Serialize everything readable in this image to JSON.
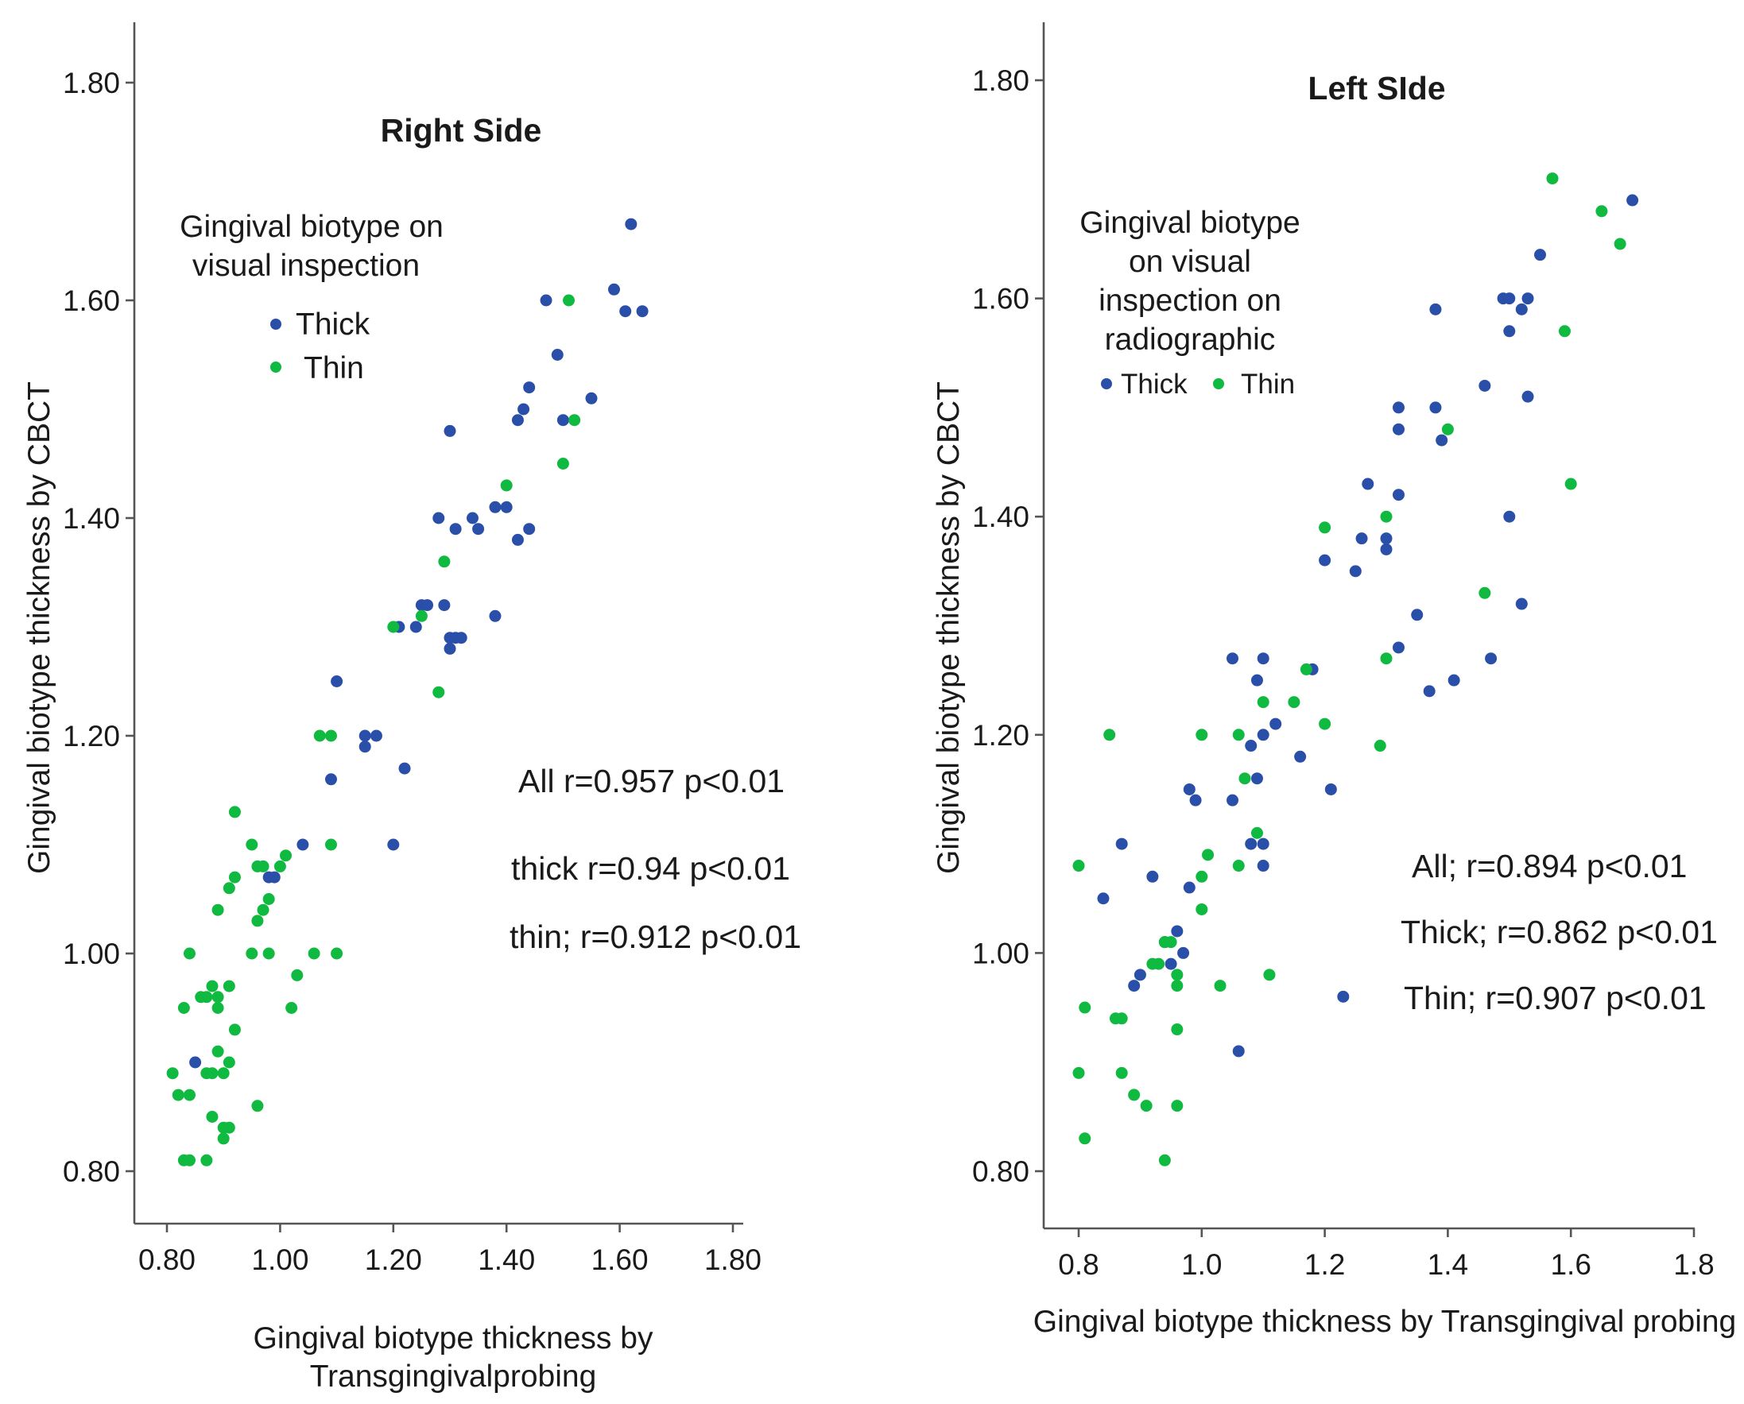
{
  "chart_data": [
    {
      "type": "scatter",
      "title": "Right Side",
      "xlabel": [
        "Gingival biotype thickness by",
        "Transgingivalprobing"
      ],
      "ylabel": "Gingival biotype thickness by CBCT",
      "xlim": [
        0.78,
        1.8
      ],
      "ylim": [
        0.77,
        1.85
      ],
      "x_ticks": [
        "0.80",
        "1.00",
        "1.20",
        "1.40",
        "1.60",
        "1.80"
      ],
      "y_ticks": [
        "0.80",
        "1.00",
        "1.20",
        "1.40",
        "1.60",
        "1.80"
      ],
      "grid": false,
      "legend": {
        "title": [
          "Gingival biotype on",
          "visual inspection"
        ],
        "placement": "top-left",
        "layout": "vertical",
        "entries": [
          "Thick",
          "Thin"
        ]
      },
      "annotations": [
        "All r=0.957 p<0.01",
        "thick r=0.94 p<0.01",
        "thin; r=0.912 p<0.01"
      ],
      "series": [
        {
          "name": "Thick",
          "color": "#2a4fa8",
          "points": [
            [
              0.85,
              0.9
            ],
            [
              0.98,
              1.07
            ],
            [
              0.99,
              1.07
            ],
            [
              1.04,
              1.1
            ],
            [
              1.09,
              1.16
            ],
            [
              1.1,
              1.25
            ],
            [
              1.15,
              1.19
            ],
            [
              1.15,
              1.2
            ],
            [
              1.17,
              1.2
            ],
            [
              1.2,
              1.1
            ],
            [
              1.21,
              1.3
            ],
            [
              1.22,
              1.17
            ],
            [
              1.24,
              1.3
            ],
            [
              1.25,
              1.32
            ],
            [
              1.26,
              1.32
            ],
            [
              1.28,
              1.4
            ],
            [
              1.29,
              1.32
            ],
            [
              1.3,
              1.28
            ],
            [
              1.3,
              1.29
            ],
            [
              1.3,
              1.48
            ],
            [
              1.31,
              1.39
            ],
            [
              1.31,
              1.29
            ],
            [
              1.32,
              1.29
            ],
            [
              1.34,
              1.4
            ],
            [
              1.35,
              1.39
            ],
            [
              1.38,
              1.31
            ],
            [
              1.38,
              1.41
            ],
            [
              1.4,
              1.41
            ],
            [
              1.42,
              1.38
            ],
            [
              1.42,
              1.49
            ],
            [
              1.43,
              1.5
            ],
            [
              1.44,
              1.39
            ],
            [
              1.44,
              1.52
            ],
            [
              1.47,
              1.6
            ],
            [
              1.49,
              1.55
            ],
            [
              1.5,
              1.49
            ],
            [
              1.55,
              1.51
            ],
            [
              1.59,
              1.61
            ],
            [
              1.61,
              1.59
            ],
            [
              1.62,
              1.67
            ],
            [
              1.64,
              1.59
            ]
          ]
        },
        {
          "name": "Thin",
          "color": "#10b940",
          "points": [
            [
              0.81,
              0.89
            ],
            [
              0.82,
              0.87
            ],
            [
              0.83,
              0.95
            ],
            [
              0.83,
              0.81
            ],
            [
              0.84,
              0.81
            ],
            [
              0.84,
              0.87
            ],
            [
              0.84,
              1.0
            ],
            [
              0.86,
              0.96
            ],
            [
              0.87,
              0.96
            ],
            [
              0.87,
              0.89
            ],
            [
              0.87,
              0.81
            ],
            [
              0.88,
              0.85
            ],
            [
              0.88,
              0.89
            ],
            [
              0.88,
              0.97
            ],
            [
              0.89,
              0.95
            ],
            [
              0.89,
              0.96
            ],
            [
              0.89,
              0.91
            ],
            [
              0.89,
              1.04
            ],
            [
              0.9,
              0.84
            ],
            [
              0.9,
              0.89
            ],
            [
              0.9,
              0.83
            ],
            [
              0.91,
              0.84
            ],
            [
              0.91,
              0.9
            ],
            [
              0.91,
              0.97
            ],
            [
              0.91,
              1.06
            ],
            [
              0.92,
              0.93
            ],
            [
              0.92,
              1.07
            ],
            [
              0.92,
              1.13
            ],
            [
              0.95,
              1.0
            ],
            [
              0.95,
              1.1
            ],
            [
              0.96,
              0.86
            ],
            [
              0.96,
              1.03
            ],
            [
              0.96,
              1.08
            ],
            [
              0.97,
              1.08
            ],
            [
              0.97,
              1.04
            ],
            [
              0.98,
              1.0
            ],
            [
              0.98,
              1.05
            ],
            [
              1.0,
              1.08
            ],
            [
              1.01,
              1.09
            ],
            [
              1.02,
              0.95
            ],
            [
              1.03,
              0.98
            ],
            [
              1.06,
              1.0
            ],
            [
              1.07,
              1.2
            ],
            [
              1.09,
              1.2
            ],
            [
              1.09,
              1.1
            ],
            [
              1.1,
              1.0
            ],
            [
              1.2,
              1.3
            ],
            [
              1.25,
              1.31
            ],
            [
              1.28,
              1.24
            ],
            [
              1.29,
              1.36
            ],
            [
              1.4,
              1.43
            ],
            [
              1.5,
              1.45
            ],
            [
              1.51,
              1.6
            ],
            [
              1.52,
              1.49
            ]
          ]
        }
      ]
    },
    {
      "type": "scatter",
      "title": "Left SIde",
      "xlabel": [
        "Gingival biotype thickness by Transgingival probing"
      ],
      "ylabel": "Gingival biotype thickness by CBCT",
      "xlim": [
        0.77,
        1.82
      ],
      "ylim": [
        0.75,
        1.85
      ],
      "x_ticks": [
        "0.8",
        "1.0",
        "1.2",
        "1.4",
        "1.6",
        "1.8"
      ],
      "y_ticks": [
        "0.80",
        "1.00",
        "1.20",
        "1.40",
        "1.60",
        "1.80"
      ],
      "grid": false,
      "legend": {
        "title": [
          "Gingival biotype",
          "on visual",
          "inspection on",
          "radiographic"
        ],
        "placement": "top-left",
        "layout": "horizontal",
        "entries": [
          "Thick",
          "Thin"
        ]
      },
      "annotations": [
        "All; r=0.894 p<0.01",
        "Thick; r=0.862 p<0.01",
        "Thin; r=0.907 p<0.01"
      ],
      "series": [
        {
          "name": "Thick",
          "color": "#2a4fa8",
          "points": [
            [
              0.84,
              1.05
            ],
            [
              0.87,
              1.1
            ],
            [
              0.89,
              0.97
            ],
            [
              0.9,
              0.98
            ],
            [
              0.92,
              1.07
            ],
            [
              0.94,
              1.01
            ],
            [
              0.95,
              0.99
            ],
            [
              0.96,
              1.02
            ],
            [
              0.97,
              1.0
            ],
            [
              0.98,
              1.06
            ],
            [
              0.98,
              1.15
            ],
            [
              0.99,
              1.14
            ],
            [
              1.05,
              1.14
            ],
            [
              1.05,
              1.27
            ],
            [
              1.06,
              0.91
            ],
            [
              1.08,
              1.19
            ],
            [
              1.08,
              1.1
            ],
            [
              1.09,
              1.16
            ],
            [
              1.09,
              1.25
            ],
            [
              1.1,
              1.08
            ],
            [
              1.1,
              1.1
            ],
            [
              1.1,
              1.2
            ],
            [
              1.1,
              1.27
            ],
            [
              1.12,
              1.21
            ],
            [
              1.16,
              1.18
            ],
            [
              1.18,
              1.26
            ],
            [
              1.2,
              1.36
            ],
            [
              1.21,
              1.15
            ],
            [
              1.23,
              0.96
            ],
            [
              1.25,
              1.35
            ],
            [
              1.26,
              1.38
            ],
            [
              1.27,
              1.43
            ],
            [
              1.3,
              1.37
            ],
            [
              1.3,
              1.38
            ],
            [
              1.32,
              1.28
            ],
            [
              1.32,
              1.42
            ],
            [
              1.32,
              1.48
            ],
            [
              1.32,
              1.5
            ],
            [
              1.35,
              1.31
            ],
            [
              1.37,
              1.24
            ],
            [
              1.38,
              1.5
            ],
            [
              1.38,
              1.59
            ],
            [
              1.39,
              1.47
            ],
            [
              1.41,
              1.25
            ],
            [
              1.46,
              1.52
            ],
            [
              1.47,
              1.27
            ],
            [
              1.49,
              1.6
            ],
            [
              1.5,
              1.4
            ],
            [
              1.5,
              1.57
            ],
            [
              1.5,
              1.6
            ],
            [
              1.52,
              1.32
            ],
            [
              1.52,
              1.59
            ],
            [
              1.53,
              1.51
            ],
            [
              1.53,
              1.6
            ],
            [
              1.55,
              1.64
            ],
            [
              1.7,
              1.69
            ]
          ]
        },
        {
          "name": "Thin",
          "color": "#10b940",
          "points": [
            [
              0.8,
              1.08
            ],
            [
              0.8,
              0.89
            ],
            [
              0.81,
              0.95
            ],
            [
              0.81,
              0.83
            ],
            [
              0.85,
              1.2
            ],
            [
              0.86,
              0.94
            ],
            [
              0.87,
              0.94
            ],
            [
              0.87,
              0.89
            ],
            [
              0.89,
              0.87
            ],
            [
              0.91,
              0.86
            ],
            [
              0.92,
              0.99
            ],
            [
              0.93,
              0.99
            ],
            [
              0.94,
              1.01
            ],
            [
              0.94,
              0.81
            ],
            [
              0.95,
              1.01
            ],
            [
              0.96,
              0.98
            ],
            [
              0.96,
              0.97
            ],
            [
              0.96,
              0.93
            ],
            [
              0.96,
              0.86
            ],
            [
              1.0,
              1.07
            ],
            [
              1.0,
              1.04
            ],
            [
              1.0,
              1.2
            ],
            [
              1.01,
              1.09
            ],
            [
              1.03,
              0.97
            ],
            [
              1.06,
              1.08
            ],
            [
              1.06,
              1.2
            ],
            [
              1.07,
              1.16
            ],
            [
              1.09,
              1.11
            ],
            [
              1.1,
              1.23
            ],
            [
              1.11,
              0.98
            ],
            [
              1.15,
              1.23
            ],
            [
              1.17,
              1.26
            ],
            [
              1.2,
              1.39
            ],
            [
              1.2,
              1.21
            ],
            [
              1.29,
              1.19
            ],
            [
              1.3,
              1.4
            ],
            [
              1.3,
              1.27
            ],
            [
              1.4,
              1.48
            ],
            [
              1.46,
              1.33
            ],
            [
              1.57,
              1.71
            ],
            [
              1.59,
              1.57
            ],
            [
              1.6,
              1.43
            ],
            [
              1.65,
              1.68
            ],
            [
              1.68,
              1.65
            ]
          ]
        }
      ]
    }
  ]
}
